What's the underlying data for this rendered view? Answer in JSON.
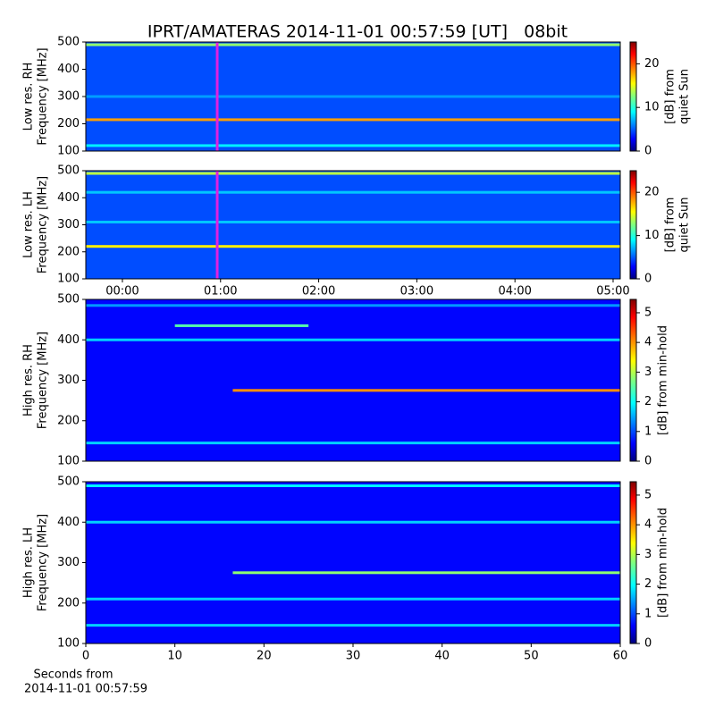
{
  "title": "IPRT/AMATERAS 2014-11-01 00:57:59 [UT]   08bit",
  "footer": [
    "Seconds from",
    "2014-11-01 00:57:59"
  ],
  "chart_data": [
    {
      "type": "heatmap",
      "ylabel": [
        "Low res. RH",
        "Frequency [MHz]"
      ],
      "colorbar_label": [
        "[dB] from",
        "quiet Sun"
      ],
      "xlim": [
        -0.373,
        5.073
      ],
      "ylim": [
        100,
        500
      ],
      "yticks": [
        100,
        200,
        300,
        400,
        500
      ],
      "clim": [
        0,
        25
      ],
      "cticks": [
        0,
        10,
        20
      ],
      "background": 5,
      "bands": [
        {
          "frequency": 490,
          "start": -0.373,
          "end": 5.073,
          "level": 13
        },
        {
          "frequency": 215,
          "start": -0.373,
          "end": 5.073,
          "level": 18
        },
        {
          "frequency": 120,
          "start": -0.373,
          "end": 5.073,
          "level": 9
        },
        {
          "frequency": 300,
          "start": -0.373,
          "end": 5.073,
          "level": 7
        }
      ],
      "marker": {
        "x": 0.966,
        "color": "#e020e0"
      }
    },
    {
      "type": "heatmap",
      "ylabel": [
        "Low res. LH",
        "Frequency [MHz]"
      ],
      "colorbar_label": [
        "[dB] from",
        "quiet Sun"
      ],
      "xlim": [
        -0.373,
        5.073
      ],
      "ylim": [
        100,
        500
      ],
      "yticks": [
        100,
        200,
        300,
        400,
        500
      ],
      "xticks": [
        {
          "value": 0,
          "label": "00:00"
        },
        {
          "value": 1,
          "label": "01:00"
        },
        {
          "value": 2,
          "label": "02:00"
        },
        {
          "value": 3,
          "label": "03:00"
        },
        {
          "value": 4,
          "label": "04:00"
        },
        {
          "value": 5,
          "label": "05:00"
        }
      ],
      "clim": [
        0,
        25
      ],
      "cticks": [
        0,
        10,
        20
      ],
      "background": 5,
      "bands": [
        {
          "frequency": 490,
          "start": -0.373,
          "end": 5.073,
          "level": 14
        },
        {
          "frequency": 220,
          "start": -0.373,
          "end": 5.073,
          "level": 16
        },
        {
          "frequency": 310,
          "start": -0.373,
          "end": 5.073,
          "level": 8
        },
        {
          "frequency": 420,
          "start": -0.373,
          "end": 5.073,
          "level": 8
        }
      ],
      "marker": {
        "x": 0.966,
        "color": "#e020e0"
      }
    },
    {
      "type": "heatmap",
      "ylabel": [
        "High res. RH",
        "Frequency [MHz]"
      ],
      "colorbar_label": [
        "[dB] from min-hold"
      ],
      "xlim": [
        0,
        60
      ],
      "ylim": [
        100,
        500
      ],
      "yticks": [
        100,
        200,
        300,
        400,
        500
      ],
      "clim": [
        0,
        5.45
      ],
      "cticks": [
        0,
        1,
        2,
        3,
        4,
        5
      ],
      "background": 0.7,
      "bands": [
        {
          "frequency": 275,
          "start": 16.5,
          "end": 60,
          "level": 4
        },
        {
          "frequency": 435,
          "start": 10,
          "end": 25,
          "level": 2.5
        },
        {
          "frequency": 400,
          "start": 0,
          "end": 60,
          "level": 1.8
        },
        {
          "frequency": 145,
          "start": 0,
          "end": 60,
          "level": 1.8
        },
        {
          "frequency": 485,
          "start": 0,
          "end": 60,
          "level": 1.5
        }
      ]
    },
    {
      "type": "heatmap",
      "ylabel": [
        "High res. LH",
        "Frequency [MHz]"
      ],
      "colorbar_label": [
        "[dB] from min-hold"
      ],
      "xlim": [
        0,
        60
      ],
      "ylim": [
        100,
        500
      ],
      "yticks": [
        100,
        200,
        300,
        400,
        500
      ],
      "xticks": [
        0,
        10,
        20,
        30,
        40,
        50,
        60
      ],
      "clim": [
        0,
        5.45
      ],
      "cticks": [
        0,
        1,
        2,
        3,
        4,
        5
      ],
      "background": 0.7,
      "bands": [
        {
          "frequency": 275,
          "start": 16.5,
          "end": 60,
          "level": 2.8
        },
        {
          "frequency": 400,
          "start": 0,
          "end": 60,
          "level": 1.8
        },
        {
          "frequency": 490,
          "start": 0,
          "end": 60,
          "level": 2
        },
        {
          "frequency": 210,
          "start": 0,
          "end": 60,
          "level": 1.8
        },
        {
          "frequency": 145,
          "start": 0,
          "end": 60,
          "level": 1.8
        }
      ]
    }
  ]
}
